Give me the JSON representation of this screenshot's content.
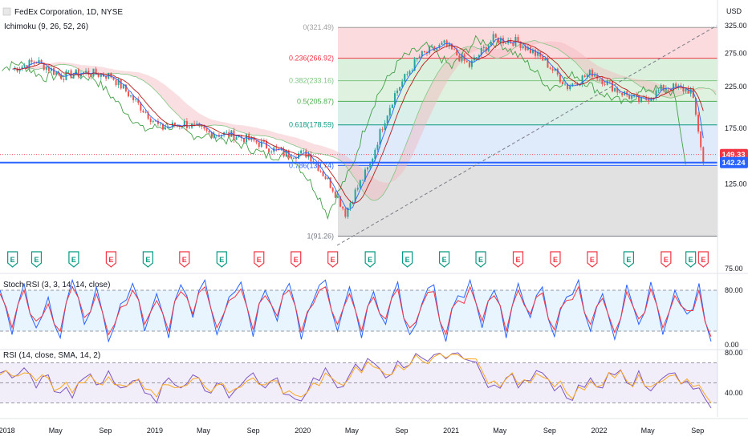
{
  "header": {
    "symbol_title": "FedEx Corporation, 1D, NYSE",
    "indicator_label": "Ichimoku (9, 26, 52, 26)"
  },
  "chart_data": [
    {
      "type": "line",
      "title": "FedEx Corporation, 1D, NYSE",
      "currency": "USD",
      "y_scale": "log",
      "ylim": [
        75,
        325
      ],
      "y_ticks": [
        "325.00",
        "275.00",
        "225.00",
        "175.00",
        "125.00",
        "75.00"
      ],
      "x_ticks": [
        "2018",
        "May",
        "Sep",
        "2019",
        "May",
        "Sep",
        "2020",
        "May",
        "Sep",
        "2021",
        "May",
        "Sep",
        "2022",
        "May",
        "Sep"
      ],
      "price_series": {
        "name": "Close",
        "x": [
          "2018-01",
          "2018-03",
          "2018-05",
          "2018-07",
          "2018-09",
          "2018-11",
          "2019-01",
          "2019-03",
          "2019-05",
          "2019-07",
          "2019-09",
          "2019-11",
          "2020-01",
          "2020-03",
          "2020-04",
          "2020-06",
          "2020-08",
          "2020-10",
          "2020-12",
          "2021-02",
          "2021-04",
          "2021-06",
          "2021-08",
          "2021-10",
          "2021-12",
          "2022-02",
          "2022-04",
          "2022-06",
          "2022-08",
          "2022-09"
        ],
        "y": [
          250,
          262,
          240,
          245,
          240,
          205,
          175,
          180,
          170,
          168,
          160,
          150,
          150,
          122,
          105,
          140,
          215,
          270,
          290,
          255,
          300,
          295,
          265,
          225,
          245,
          220,
          205,
          225,
          220,
          142
        ]
      },
      "fibonacci": [
        {
          "label": "0(321.49)",
          "value": 321.49,
          "color": "#9e9e9e"
        },
        {
          "label": "0.236(266.92)",
          "value": 266.92,
          "color": "#f23645"
        },
        {
          "label": "0.382(233.16)",
          "value": 233.16,
          "color": "#81c784"
        },
        {
          "label": "0.5(205.87)",
          "value": 205.87,
          "color": "#4caf50"
        },
        {
          "label": "0.618(178.59)",
          "value": 178.59,
          "color": "#089981"
        },
        {
          "label": "0.786(139.74)",
          "value": 139.74,
          "color": "#2962ff"
        },
        {
          "label": "1(91.26)",
          "value": 91.26,
          "color": "#787b86"
        }
      ],
      "horizontal_line": 142.24,
      "price_labels": [
        {
          "text": "149.33",
          "value": 149.33,
          "color": "#f23645"
        },
        {
          "text": "142.24",
          "value": 142.24,
          "color": "#2962ff"
        }
      ],
      "earnings_markers": [
        {
          "letter": "E",
          "color": "#089981",
          "x": "2018-01"
        },
        {
          "letter": "E",
          "color": "#089981",
          "x": "2018-03"
        },
        {
          "letter": "E",
          "color": "#089981",
          "x": "2018-06"
        },
        {
          "letter": "E",
          "color": "#f23645",
          "x": "2018-09"
        },
        {
          "letter": "E",
          "color": "#089981",
          "x": "2018-12"
        },
        {
          "letter": "E",
          "color": "#f23645",
          "x": "2019-03"
        },
        {
          "letter": "E",
          "color": "#089981",
          "x": "2019-06"
        },
        {
          "letter": "E",
          "color": "#f23645",
          "x": "2019-09"
        },
        {
          "letter": "E",
          "color": "#f23645",
          "x": "2019-12"
        },
        {
          "letter": "E",
          "color": "#f23645",
          "x": "2020-03"
        },
        {
          "letter": "E",
          "color": "#089981",
          "x": "2020-06"
        },
        {
          "letter": "E",
          "color": "#089981",
          "x": "2020-09"
        },
        {
          "letter": "E",
          "color": "#089981",
          "x": "2020-12"
        },
        {
          "letter": "E",
          "color": "#089981",
          "x": "2021-03"
        },
        {
          "letter": "E",
          "color": "#f23645",
          "x": "2021-06"
        },
        {
          "letter": "E",
          "color": "#f23645",
          "x": "2021-09"
        },
        {
          "letter": "E",
          "color": "#f23645",
          "x": "2021-12"
        },
        {
          "letter": "E",
          "color": "#089981",
          "x": "2022-03"
        },
        {
          "letter": "E",
          "color": "#f23645",
          "x": "2022-06"
        },
        {
          "letter": "E",
          "color": "#089981",
          "x": "2022-08"
        },
        {
          "letter": "E",
          "color": "#f23645",
          "x": "2022-09"
        }
      ]
    },
    {
      "type": "line",
      "title": "Stoch RSI (3, 3, 14, 14, close)",
      "ylim": [
        0,
        100
      ],
      "y_ticks": [
        "80.00",
        "0.00"
      ],
      "bands": [
        20,
        80
      ],
      "series": [
        {
          "name": "K",
          "color": "#2962ff",
          "values": [
            80,
            15,
            90,
            25,
            70,
            10,
            95,
            30,
            85,
            5,
            60,
            90,
            20,
            75,
            10,
            88,
            40,
            95,
            15,
            70,
            92,
            12,
            80,
            35,
            90,
            8,
            65,
            95,
            20,
            85,
            10,
            78,
            30,
            92,
            15,
            60,
            88,
            5,
            72,
            95,
            25,
            80,
            10,
            90,
            40,
            85,
            12,
            70,
            95,
            20,
            75,
            8,
            88,
            30,
            92,
            15,
            80,
            45,
            90,
            5
          ]
        },
        {
          "name": "D",
          "color": "#f23645",
          "values": [
            75,
            25,
            80,
            35,
            60,
            20,
            85,
            40,
            75,
            15,
            55,
            80,
            30,
            65,
            20,
            78,
            45,
            85,
            25,
            65,
            82,
            22,
            72,
            42,
            80,
            18,
            60,
            85,
            30,
            75,
            20,
            70,
            38,
            82,
            25,
            58,
            78,
            15,
            65,
            85,
            35,
            72,
            20,
            80,
            45,
            76,
            22,
            65,
            85,
            30,
            68,
            18,
            78,
            38,
            82,
            25,
            72,
            50,
            80,
            12
          ]
        }
      ]
    },
    {
      "type": "line",
      "title": "RSI (14, close, SMA, 14, 2)",
      "ylim": [
        20,
        80
      ],
      "y_ticks": [
        "80.00",
        "40.00"
      ],
      "bands": [
        30,
        50,
        70
      ],
      "series": [
        {
          "name": "RSI",
          "color": "#7e57c2",
          "values": [
            60,
            55,
            65,
            45,
            58,
            40,
            35,
            55,
            48,
            62,
            45,
            52,
            40,
            30,
            55,
            45,
            58,
            42,
            50,
            35,
            48,
            60,
            45,
            55,
            38,
            32,
            55,
            65,
            45,
            58,
            62,
            70,
            55,
            72,
            68,
            75,
            78,
            74,
            80,
            72,
            58,
            48,
            55,
            45,
            52,
            60,
            42,
            35,
            48,
            55,
            45,
            58,
            50,
            62,
            42,
            55,
            60,
            52,
            45,
            25
          ]
        },
        {
          "name": "SMA",
          "color": "#f9a825",
          "values": [
            58,
            57,
            60,
            52,
            55,
            45,
            40,
            50,
            50,
            56,
            48,
            50,
            44,
            36,
            48,
            46,
            54,
            46,
            48,
            40,
            46,
            55,
            48,
            52,
            42,
            36,
            50,
            60,
            50,
            55,
            60,
            66,
            58,
            68,
            68,
            72,
            76,
            75,
            78,
            74,
            62,
            52,
            54,
            48,
            50,
            56,
            46,
            40,
            46,
            52,
            48,
            55,
            52,
            58,
            46,
            52,
            58,
            54,
            48,
            30
          ]
        }
      ]
    }
  ],
  "rsi_panel": {
    "title": "RSI (14, close, SMA, 14, 2)"
  },
  "stoch_panel": {
    "title": "Stoch RSI (3, 3, 14, 14, close)"
  }
}
